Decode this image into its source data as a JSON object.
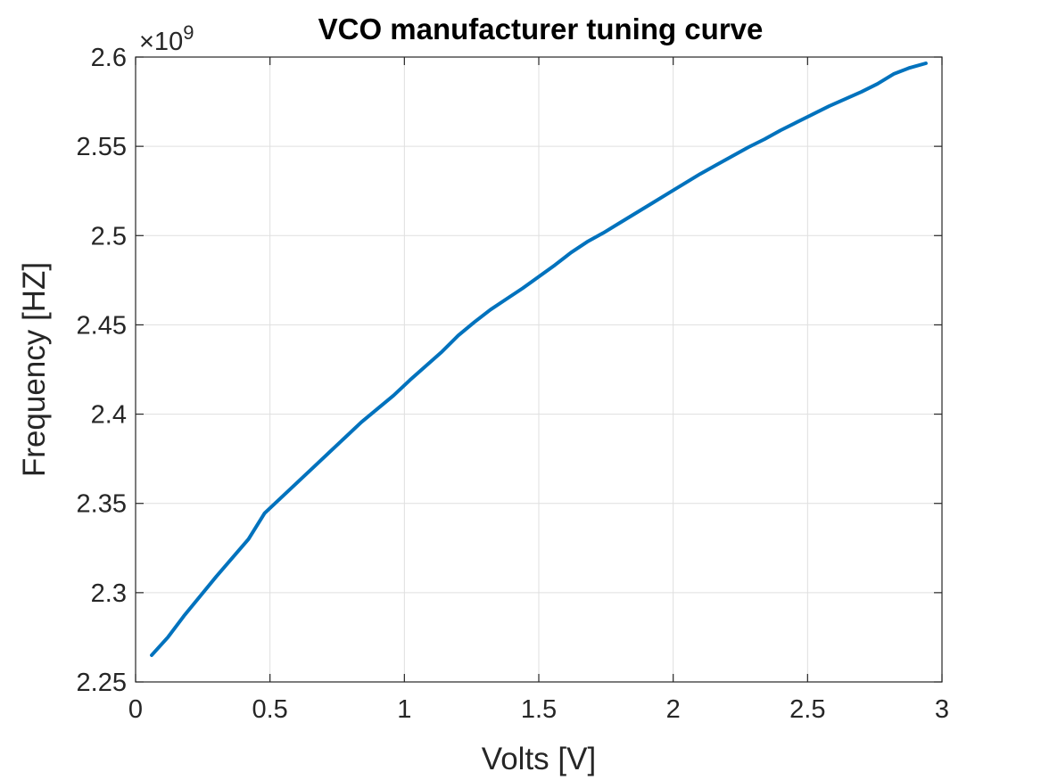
{
  "chart_data": {
    "type": "line",
    "title": "VCO manufacturer tuning curve",
    "xlabel": "Volts [V]",
    "ylabel": "Frequency [HZ]",
    "y_exponent": {
      "base": "10",
      "power": "9"
    },
    "xlim": [
      0,
      3
    ],
    "ylim": [
      2.25,
      2.6
    ],
    "x_ticks": [
      0,
      0.5,
      1,
      1.5,
      2,
      2.5,
      3
    ],
    "x_tick_labels": [
      "0",
      "0.5",
      "1",
      "1.5",
      "2",
      "2.5",
      "3"
    ],
    "y_ticks": [
      2.25,
      2.3,
      2.35,
      2.4,
      2.45,
      2.5,
      2.55,
      2.6
    ],
    "y_tick_labels": [
      "2.25",
      "2.3",
      "2.35",
      "2.4",
      "2.45",
      "2.5",
      "2.55",
      "2.6"
    ],
    "grid": true,
    "series": [
      {
        "color": "#0072bd",
        "x": [
          0.06,
          0.12,
          0.18,
          0.24,
          0.3,
          0.36,
          0.42,
          0.48,
          0.54,
          0.6,
          0.66,
          0.72,
          0.78,
          0.84,
          0.9,
          0.96,
          1.02,
          1.08,
          1.14,
          1.2,
          1.26,
          1.32,
          1.38,
          1.44,
          1.5,
          1.56,
          1.62,
          1.68,
          1.74,
          1.8,
          1.86,
          1.92,
          1.98,
          2.04,
          2.1,
          2.16,
          2.22,
          2.28,
          2.34,
          2.4,
          2.46,
          2.52,
          2.58,
          2.64,
          2.7,
          2.76,
          2.82,
          2.88,
          2.94
        ],
        "y": [
          2.265,
          2.275,
          2.287,
          2.298,
          2.309,
          2.3195,
          2.33,
          2.3445,
          2.353,
          2.3615,
          2.37,
          2.3785,
          2.387,
          2.3955,
          2.403,
          2.4105,
          2.419,
          2.427,
          2.435,
          2.444,
          2.4515,
          2.4585,
          2.4645,
          2.4705,
          2.477,
          2.4835,
          2.4905,
          2.4965,
          2.5015,
          2.507,
          2.5125,
          2.518,
          2.5235,
          2.529,
          2.5345,
          2.5395,
          2.5445,
          2.5495,
          2.554,
          2.559,
          2.5635,
          2.568,
          2.5725,
          2.5765,
          2.5805,
          2.585,
          2.5905,
          2.594,
          2.5965
        ]
      }
    ]
  }
}
